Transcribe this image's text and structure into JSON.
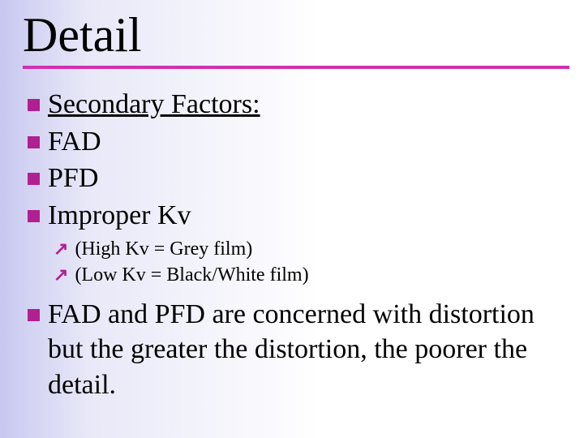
{
  "title": "Detail",
  "accent_color": "#b02090",
  "rule_color": "#d030b0",
  "bullets": {
    "b1": "Secondary Factors:",
    "b2": "FAD",
    "b3": "PFD",
    "b4": "Improper Kv",
    "sub1": "(High Kv = Grey film)",
    "sub2": "(Low Kv = Black/White film)",
    "b5": "FAD and PFD are concerned with distortion but the greater the distortion, the poorer the detail."
  }
}
